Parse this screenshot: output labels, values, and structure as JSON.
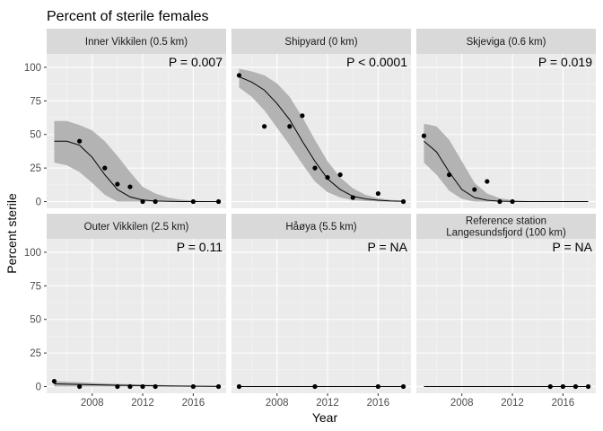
{
  "chart_data": {
    "type": "scatter",
    "title": "Percent of sterile females",
    "xlabel": "Year",
    "ylabel": "Percent sterile",
    "xlim": [
      2004.4,
      2018.6
    ],
    "ylim": [
      -5,
      110
    ],
    "xticks": [
      2008,
      2012,
      2016
    ],
    "yticks": [
      0,
      25,
      50,
      75,
      100
    ],
    "grid": true,
    "panels": [
      {
        "title": "Inner Vikkilen (0.5 km)",
        "p_label": "P =  0.007",
        "points": [
          [
            2007,
            45
          ],
          [
            2009,
            25
          ],
          [
            2010,
            13
          ],
          [
            2011,
            11
          ],
          [
            2012,
            0
          ],
          [
            2013,
            0
          ],
          [
            2016,
            0
          ],
          [
            2018,
            0
          ]
        ],
        "fit": [
          [
            2005,
            45
          ],
          [
            2006,
            45
          ],
          [
            2007,
            42
          ],
          [
            2008,
            33
          ],
          [
            2009,
            20
          ],
          [
            2010,
            9
          ],
          [
            2011,
            3.5
          ],
          [
            2012,
            1.2
          ],
          [
            2013,
            0.4
          ],
          [
            2014,
            0.15
          ],
          [
            2015,
            0.05
          ],
          [
            2016,
            0
          ],
          [
            2017,
            0
          ],
          [
            2018,
            0
          ]
        ],
        "band_upper": [
          [
            2005,
            60
          ],
          [
            2006,
            60
          ],
          [
            2007,
            57
          ],
          [
            2008,
            53
          ],
          [
            2009,
            45
          ],
          [
            2010,
            34
          ],
          [
            2011,
            22
          ],
          [
            2012,
            11
          ],
          [
            2013,
            6
          ],
          [
            2014,
            3
          ],
          [
            2015,
            1.5
          ],
          [
            2016,
            0.7
          ],
          [
            2017,
            0.3
          ],
          [
            2018,
            0.1
          ]
        ],
        "band_lower": [
          [
            2005,
            29
          ],
          [
            2006,
            27
          ],
          [
            2007,
            22
          ],
          [
            2008,
            14
          ],
          [
            2009,
            5
          ],
          [
            2010,
            0
          ],
          [
            2011,
            0
          ],
          [
            2012,
            0
          ],
          [
            2013,
            0
          ],
          [
            2014,
            0
          ],
          [
            2015,
            0
          ],
          [
            2016,
            0
          ],
          [
            2017,
            0
          ],
          [
            2018,
            0
          ]
        ]
      },
      {
        "title": "Shipyard (0 km)",
        "p_label": "P < 0.0001",
        "points": [
          [
            2005,
            94
          ],
          [
            2007,
            56
          ],
          [
            2009,
            56
          ],
          [
            2010,
            64
          ],
          [
            2011,
            25
          ],
          [
            2012,
            18
          ],
          [
            2013,
            20
          ],
          [
            2014,
            3
          ],
          [
            2016,
            6
          ],
          [
            2018,
            0
          ]
        ],
        "fit": [
          [
            2005,
            93
          ],
          [
            2006,
            89
          ],
          [
            2007,
            83
          ],
          [
            2008,
            73
          ],
          [
            2009,
            61
          ],
          [
            2010,
            45
          ],
          [
            2011,
            30
          ],
          [
            2012,
            17
          ],
          [
            2013,
            9
          ],
          [
            2014,
            4
          ],
          [
            2015,
            2
          ],
          [
            2016,
            1
          ],
          [
            2017,
            0.4
          ],
          [
            2018,
            0.2
          ]
        ],
        "band_upper": [
          [
            2005,
            99
          ],
          [
            2006,
            97
          ],
          [
            2007,
            94
          ],
          [
            2008,
            88
          ],
          [
            2009,
            78
          ],
          [
            2010,
            63
          ],
          [
            2011,
            46
          ],
          [
            2012,
            30
          ],
          [
            2013,
            18
          ],
          [
            2014,
            10
          ],
          [
            2015,
            5
          ],
          [
            2016,
            2.5
          ],
          [
            2017,
            1.3
          ],
          [
            2018,
            0.8
          ]
        ],
        "band_lower": [
          [
            2005,
            85
          ],
          [
            2006,
            78
          ],
          [
            2007,
            68
          ],
          [
            2008,
            55
          ],
          [
            2009,
            42
          ],
          [
            2010,
            28
          ],
          [
            2011,
            15
          ],
          [
            2012,
            7
          ],
          [
            2013,
            3
          ],
          [
            2014,
            1
          ],
          [
            2015,
            0.4
          ],
          [
            2016,
            0.1
          ],
          [
            2017,
            0
          ],
          [
            2018,
            0
          ]
        ]
      },
      {
        "title": "Skjeviga (0.6 km)",
        "p_label": "P =  0.019",
        "points": [
          [
            2005,
            49
          ],
          [
            2007,
            20
          ],
          [
            2009,
            9
          ],
          [
            2010,
            15
          ],
          [
            2011,
            0
          ],
          [
            2012,
            0
          ]
        ],
        "fit": [
          [
            2005,
            45
          ],
          [
            2006,
            37
          ],
          [
            2007,
            22
          ],
          [
            2008,
            9
          ],
          [
            2009,
            3
          ],
          [
            2010,
            1
          ],
          [
            2011,
            0.3
          ],
          [
            2012,
            0.1
          ],
          [
            2013,
            0
          ],
          [
            2014,
            0
          ],
          [
            2015,
            0
          ],
          [
            2016,
            0
          ],
          [
            2017,
            0
          ],
          [
            2018,
            0
          ]
        ],
        "band_upper": [
          [
            2005,
            58
          ],
          [
            2006,
            56
          ],
          [
            2007,
            46
          ],
          [
            2008,
            30
          ],
          [
            2009,
            14
          ],
          [
            2010,
            6
          ],
          [
            2011,
            2.5
          ],
          [
            2012,
            1
          ],
          [
            2013,
            0.4
          ],
          [
            2014,
            0.2
          ],
          [
            2015,
            0.1
          ],
          [
            2016,
            0
          ],
          [
            2017,
            0
          ],
          [
            2018,
            0
          ]
        ],
        "band_lower": [
          [
            2005,
            29
          ],
          [
            2006,
            20
          ],
          [
            2007,
            8
          ],
          [
            2008,
            2
          ],
          [
            2009,
            0
          ],
          [
            2010,
            0
          ],
          [
            2011,
            0
          ],
          [
            2012,
            0
          ],
          [
            2013,
            0
          ],
          [
            2014,
            0
          ],
          [
            2015,
            0
          ],
          [
            2016,
            0
          ],
          [
            2017,
            0
          ],
          [
            2018,
            0
          ]
        ]
      },
      {
        "title": "Outer Vikkilen (2.5 km)",
        "p_label": "P =  0.11",
        "points": [
          [
            2005,
            4
          ],
          [
            2007,
            0
          ],
          [
            2010,
            0
          ],
          [
            2011,
            0
          ],
          [
            2012,
            0
          ],
          [
            2013,
            0
          ],
          [
            2016,
            0
          ],
          [
            2018,
            0
          ]
        ],
        "fit": [
          [
            2005,
            2
          ],
          [
            2010,
            1
          ],
          [
            2014,
            0.4
          ],
          [
            2018,
            0.1
          ]
        ],
        "band_upper": [
          [
            2005,
            4
          ],
          [
            2010,
            2
          ],
          [
            2014,
            1
          ],
          [
            2018,
            0.5
          ]
        ],
        "band_lower": [
          [
            2005,
            0
          ],
          [
            2010,
            0
          ],
          [
            2014,
            0
          ],
          [
            2018,
            0
          ]
        ]
      },
      {
        "title": "Håøya (5.5 km)",
        "p_label": "P =  NA",
        "points": [
          [
            2005,
            0
          ],
          [
            2011,
            0
          ],
          [
            2016,
            0
          ],
          [
            2018,
            0
          ]
        ],
        "fit": [
          [
            2005,
            0
          ],
          [
            2018,
            0
          ]
        ],
        "band_upper": [],
        "band_lower": []
      },
      {
        "title": "Reference station\nLangesundsfjord (100 km)",
        "p_label": "P =  NA",
        "points": [
          [
            2015,
            0
          ],
          [
            2016,
            0
          ],
          [
            2017,
            0
          ],
          [
            2018,
            0
          ]
        ],
        "fit": [
          [
            2005,
            0
          ],
          [
            2018,
            0
          ]
        ],
        "band_upper": [],
        "band_lower": []
      }
    ]
  }
}
